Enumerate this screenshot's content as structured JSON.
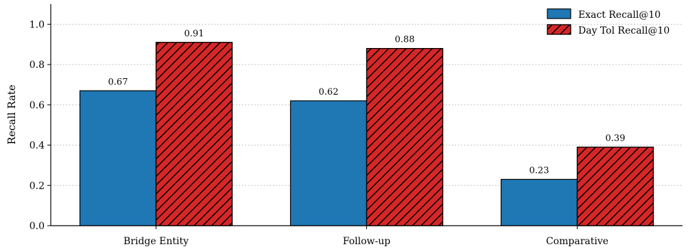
{
  "chart_data": {
    "type": "bar",
    "categories": [
      "Bridge Entity",
      "Follow-up",
      "Comparative"
    ],
    "series": [
      {
        "name": "Exact Recall@10",
        "values": [
          0.67,
          0.62,
          0.23
        ],
        "labels": [
          "0.67",
          "0.62",
          "0.23"
        ],
        "color": "#1f77b4",
        "hatch": "none"
      },
      {
        "name": "Day Tol Recall@10",
        "values": [
          0.91,
          0.88,
          0.39
        ],
        "labels": [
          "0.91",
          "0.88",
          "0.39"
        ],
        "color": "#d62728",
        "hatch": "diagonal"
      }
    ],
    "xlabel": "",
    "ylabel": "Recall Rate",
    "ylim": [
      0,
      1.1
    ],
    "yticks": [
      0.0,
      0.2,
      0.4,
      0.6,
      0.8,
      1.0
    ],
    "ytick_labels": [
      "0.0",
      "0.2",
      "0.4",
      "0.6",
      "0.8",
      "1.0"
    ],
    "grid": "y-dotted",
    "legend_position": "top-right"
  }
}
